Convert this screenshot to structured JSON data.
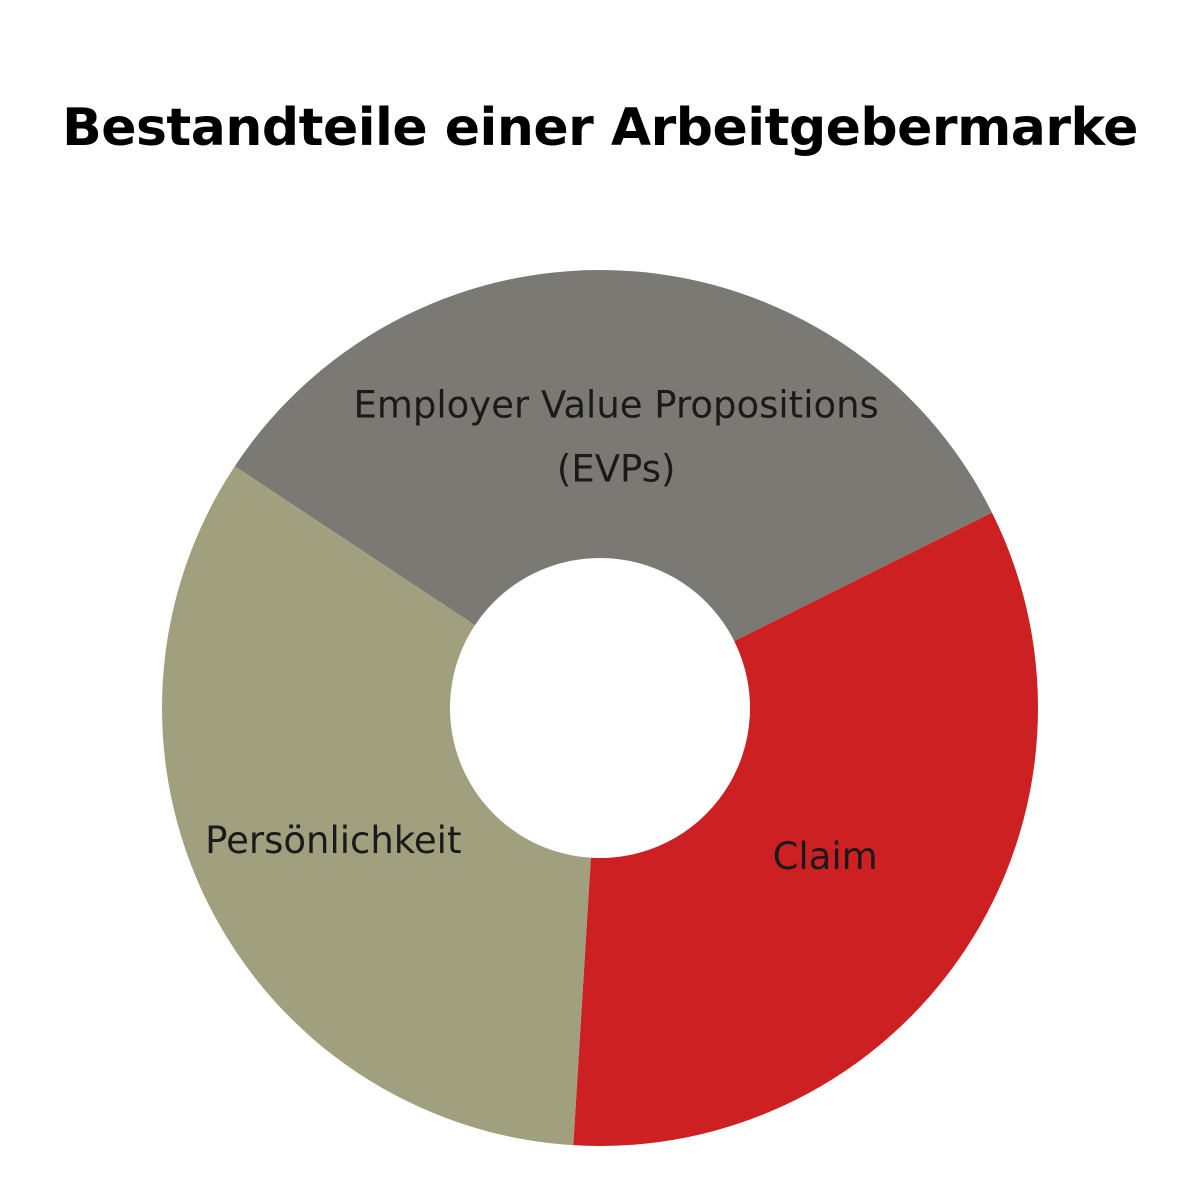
{
  "chart_data": {
    "type": "pie",
    "style": "donut",
    "title": "Bestandteile einer Arbeitgebermarke",
    "slices": [
      {
        "label": "Employer Value Propositions",
        "label_line2": "(EVPs)",
        "value": 1,
        "color": "#7b7974"
      },
      {
        "label": "Claim",
        "value": 1,
        "color": "#cc2022"
      },
      {
        "label": "Persönlichkeit",
        "value": 1,
        "color": "#a09f7e"
      }
    ],
    "legend": "none",
    "grid": false
  }
}
